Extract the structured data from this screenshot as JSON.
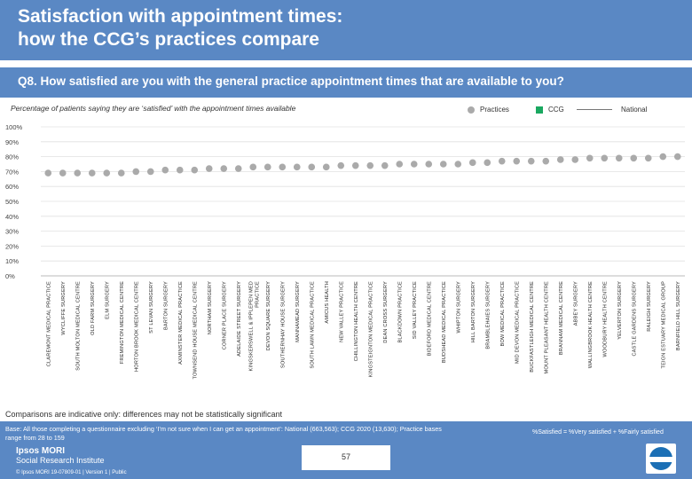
{
  "title": {
    "line1": "Satisfaction with appointment times:",
    "line2": "how the CCG’s practices compare"
  },
  "question": "Q8. How satisfied are you with the general practice appointment times that are available to you?",
  "subtitle": "Percentage of patients saying they are ‘satisfied’ with the appointment times available",
  "legend": {
    "practices": "Practices",
    "ccg": "CCG",
    "national": "National"
  },
  "colors": {
    "band": "#5a88c4",
    "practice_marker": "#aaaaaa",
    "ccg": "#1aa860",
    "national_line": "#777777"
  },
  "caveat": "Comparisons are indicative only: differences may not be statistically significant",
  "base_note": "Base: All those completing a questionnaire excluding ‘I’m not sure when I can get an appointment’: National (663,563); CCG 2020 (13,630); Practice bases range from 28 to 159",
  "sat_note": "%Satisfied = %Very satisfied + %Fairly satisfied",
  "page_number": "57",
  "logo": {
    "line1": "Ipsos MORI",
    "line2": "Social Research Institute"
  },
  "copyright": "© Ipsos MORI     19-07809-01 | Version 1 | Public",
  "chart_data": {
    "type": "scatter",
    "title": "",
    "xlabel": "",
    "ylabel": "",
    "ylim": [
      0,
      100
    ],
    "yticks": [
      "0%",
      "10%",
      "20%",
      "30%",
      "40%",
      "50%",
      "60%",
      "70%",
      "80%",
      "90%",
      "100%"
    ],
    "grid": true,
    "national_value": null,
    "categories": [
      "CLAREMONT MEDICAL PRACTICE",
      "WYCLIFFE SURGERY",
      "SOUTH MOLTON MEDICAL CENTRE",
      "OLD FARM SURGERY",
      "ELM SURGERY",
      "FREMINGTON MEDICAL CENTRE",
      "HORTON BROOK MEDICAL CENTRE",
      "ST LEVAN SURGERY",
      "BARTON SURGERY",
      "AXMINSTER MEDICAL PRACTICE",
      "TOWNSEND HOUSE MEDICAL CENTRE",
      "NORTHAM SURGERY",
      "CORNER PLACE SURGERY",
      "ADELAIDE STREET SURGERY",
      "KINGSKERSWELL & IPPLEPEN MED PRACTICE",
      "DEVON SQUARE SURGERY",
      "SOUTHERNHAY HOUSE SURGERY",
      "MANNAMEAD SURGERY",
      "SOUTH LAWN MEDICAL PRACTICE",
      "AMICUS HEALTH",
      "NEW VALLEY PRACTICE",
      "CHILLINGTON HEALTH CENTRE",
      "KINGSTEIGNTON MEDICAL PRACTICE",
      "DEAN CROSS SURGERY",
      "BLACKDOWN PRACTICE",
      "SID VALLEY PRACTICE",
      "BIDEFORD MEDICAL CENTRE",
      "BUDSHEAD MEDICAL PRACTICE",
      "WHIPTON SURGERY",
      "HILL BARTON SURGERY",
      "BRAMBLEHAIES SURGERY",
      "BOW MEDICAL PRACTICE",
      "MID DEVON MEDICAL PRACTICE",
      "BUCKFASTLEIGH MEDICAL CENTRE",
      "MOUNT PLEASANT HEALTH CENTRE",
      "BRANNAM MEDICAL CENTRE",
      "ABBEY SURGERY",
      "WALLINGBROOK HEALTH CENTRE",
      "WOODBURY HEALTH CENTRE",
      "YELVERTON SURGERY",
      "CASTLE GARDENS SURGERY",
      "RALEIGH SURGERY",
      "TEIGN ESTUARY MEDICAL GROUP",
      "BARNFIELD HILL SURGERY"
    ],
    "values": [
      69,
      69,
      69,
      69,
      69,
      69,
      70,
      70,
      71,
      71,
      71,
      72,
      72,
      72,
      73,
      73,
      73,
      73,
      73,
      73,
      74,
      74,
      74,
      74,
      75,
      75,
      75,
      75,
      75,
      76,
      76,
      77,
      77,
      77,
      77,
      78,
      78,
      79,
      79,
      79,
      79,
      79,
      80,
      80
    ],
    "highlight_color": "#aaaaaa"
  }
}
